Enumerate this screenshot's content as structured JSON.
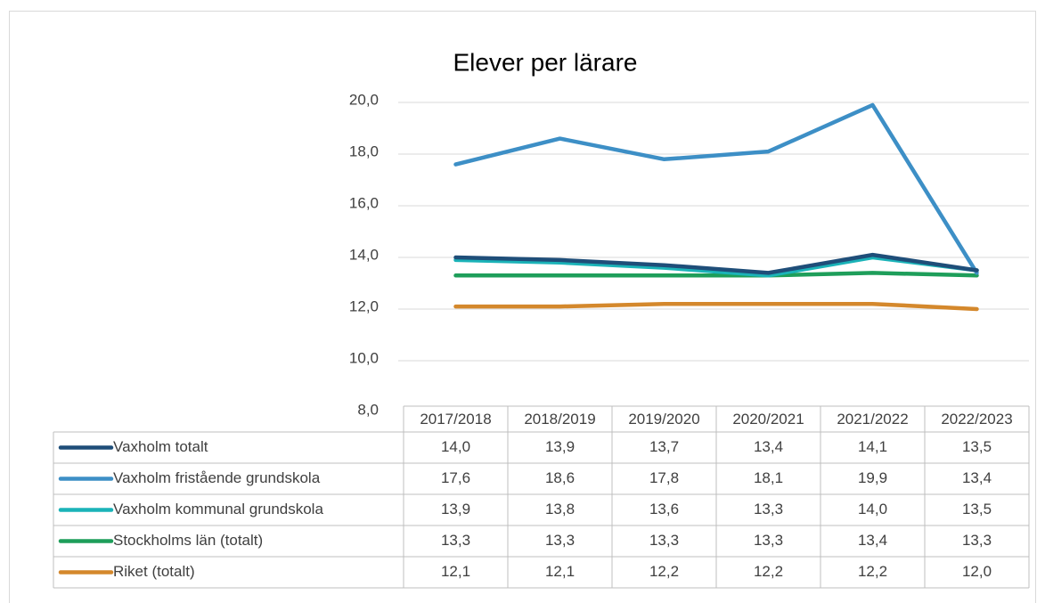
{
  "chart_data": {
    "type": "line",
    "title": "Elever per lärare",
    "categories": [
      "2017/2018",
      "2018/2019",
      "2019/2020",
      "2020/2021",
      "2021/2022",
      "2022/2023"
    ],
    "series": [
      {
        "name": "Vaxholm totalt",
        "color": "#1f4e79",
        "values": [
          14.0,
          13.9,
          13.7,
          13.4,
          14.1,
          13.5
        ],
        "value_labels": [
          "14,0",
          "13,9",
          "13,7",
          "13,4",
          "14,1",
          "13,5"
        ]
      },
      {
        "name": "Vaxholm fristående grundskola",
        "color": "#3d8fc6",
        "values": [
          17.6,
          18.6,
          17.8,
          18.1,
          19.9,
          13.4
        ],
        "value_labels": [
          "17,6",
          "18,6",
          "17,8",
          "18,1",
          "19,9",
          "13,4"
        ]
      },
      {
        "name": "Vaxholm kommunal grundskola",
        "color": "#1bb3b8",
        "values": [
          13.9,
          13.8,
          13.6,
          13.3,
          14.0,
          13.5
        ],
        "value_labels": [
          "13,9",
          "13,8",
          "13,6",
          "13,3",
          "14,0",
          "13,5"
        ]
      },
      {
        "name": "Stockholms län (totalt)",
        "color": "#1e9e5a",
        "values": [
          13.3,
          13.3,
          13.3,
          13.3,
          13.4,
          13.3
        ],
        "value_labels": [
          "13,3",
          "13,3",
          "13,3",
          "13,3",
          "13,4",
          "13,3"
        ]
      },
      {
        "name": "Riket (totalt)",
        "color": "#d4882c",
        "values": [
          12.1,
          12.1,
          12.2,
          12.2,
          12.2,
          12.0
        ],
        "value_labels": [
          "12,1",
          "12,1",
          "12,2",
          "12,2",
          "12,2",
          "12,0"
        ]
      }
    ],
    "ylim": [
      8,
      20
    ],
    "yticks": [
      {
        "value": 8,
        "label": "8,0"
      },
      {
        "value": 10,
        "label": "10,0"
      },
      {
        "value": 12,
        "label": "12,0"
      },
      {
        "value": 14,
        "label": "14,0"
      },
      {
        "value": 16,
        "label": "16,0"
      },
      {
        "value": 18,
        "label": "18,0"
      },
      {
        "value": 20,
        "label": "20,0"
      }
    ],
    "grid": true
  }
}
